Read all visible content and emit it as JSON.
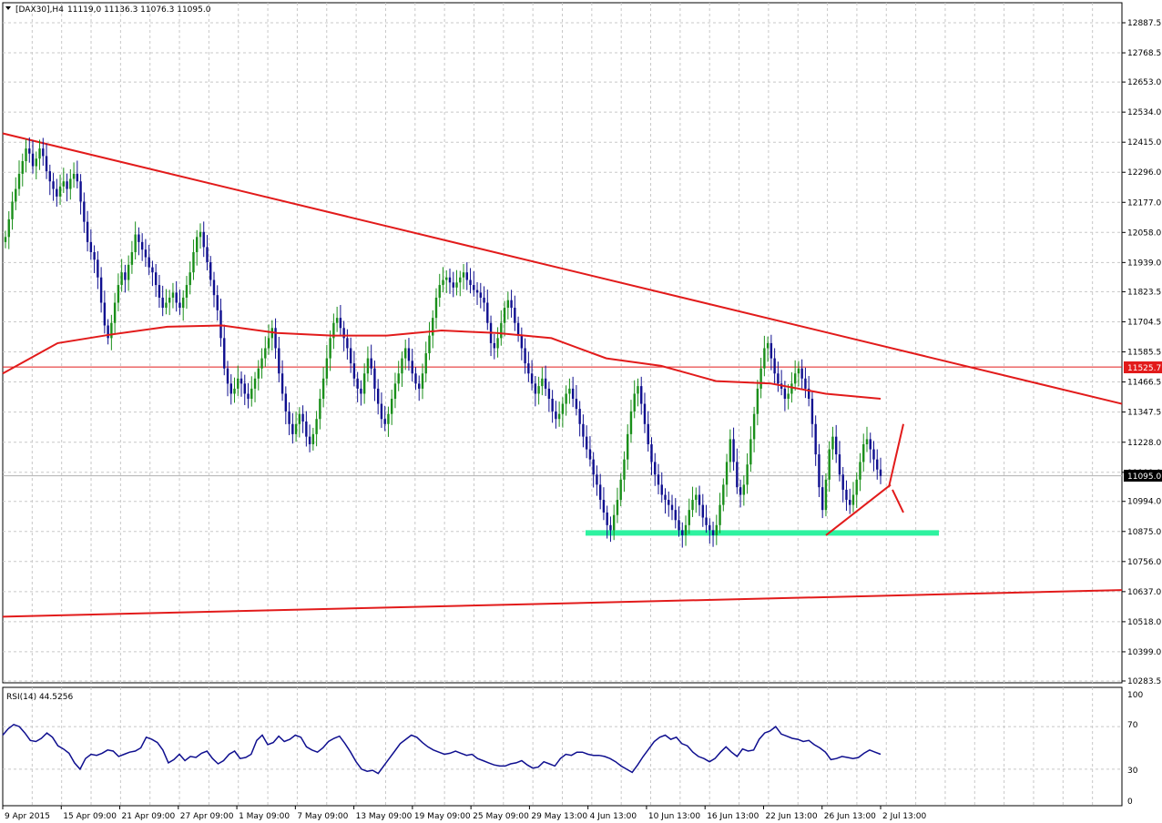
{
  "header": {
    "symbol": "[DAX30],H4",
    "ohlc": "11119,0 11136.3 11076.3 11095.0"
  },
  "rsi": {
    "label": "RSI(14) 44.5256",
    "levels": [
      "100",
      "70",
      "30",
      "0"
    ]
  },
  "chart_data": {
    "type": "candlestick",
    "price_axis": {
      "ticks": [
        12887.5,
        12768.5,
        12653.0,
        12534.0,
        12415.0,
        12296.0,
        12177.0,
        12058.0,
        11939.0,
        11823.5,
        11704.5,
        11585.5,
        11466.5,
        11347.5,
        11228.0,
        11109.0,
        10994.0,
        10875.0,
        10756.0,
        10637.0,
        10518.0,
        10399.0,
        10283.5
      ],
      "tick_labels": [
        "12887.5",
        "12768.5",
        "12653.0",
        "12534.0",
        "12415.0",
        "12296.0",
        "12177.0",
        "12058.0",
        "11939.0",
        "11823.5",
        "11704.5",
        "11585.5",
        "11466.5",
        "11347.5",
        "11228.0",
        "11109.0",
        "10994.0",
        "10875.0",
        "10756.0",
        "10637.0",
        "10518.0",
        "10399.0",
        "10283.5"
      ]
    },
    "time_axis": {
      "labels": [
        "9 Apr 2015",
        "15 Apr 09:00",
        "21 Apr 09:00",
        "27 Apr 09:00",
        "1 May 09:00",
        "7 May 09:00",
        "13 May 09:00",
        "19 May 09:00",
        "25 May 09:00",
        "29 May 13:00",
        "4 Jun 13:00",
        "10 Jun 13:00",
        "16 Jun 13:00",
        "22 Jun 13:00",
        "26 Jun 13:00",
        "2 Jul 13:00"
      ]
    },
    "closes": [
      12040,
      12110,
      12180,
      12230,
      12290,
      12340,
      12390,
      12370,
      12320,
      12350,
      12390,
      12360,
      12300,
      12260,
      12230,
      12200,
      12240,
      12260,
      12230,
      12270,
      12290,
      12260,
      12180,
      12100,
      12020,
      11980,
      11950,
      11880,
      11780,
      11690,
      11640,
      11700,
      11780,
      11850,
      11900,
      11870,
      11930,
      11980,
      12050,
      12020,
      11990,
      11960,
      11920,
      11900,
      11850,
      11800,
      11760,
      11780,
      11800,
      11820,
      11780,
      11760,
      11800,
      11850,
      11900,
      11980,
      12040,
      12060,
      12000,
      11940,
      11870,
      11810,
      11750,
      11640,
      11520,
      11460,
      11420,
      11440,
      11480,
      11460,
      11420,
      11400,
      11440,
      11480,
      11520,
      11560,
      11600,
      11640,
      11680,
      11600,
      11500,
      11420,
      11350,
      11300,
      11260,
      11300,
      11340,
      11310,
      11250,
      11220,
      11260,
      11320,
      11400,
      11480,
      11560,
      11640,
      11700,
      11720,
      11680,
      11640,
      11600,
      11540,
      11480,
      11440,
      11420,
      11500,
      11560,
      11520,
      11440,
      11380,
      11320,
      11300,
      11340,
      11400,
      11460,
      11500,
      11560,
      11600,
      11550,
      11500,
      11460,
      11440,
      11500,
      11580,
      11650,
      11720,
      11800,
      11850,
      11870,
      11880,
      11860,
      11840,
      11860,
      11880,
      11900,
      11870,
      11850,
      11830,
      11820,
      11800,
      11780,
      11700,
      11620,
      11600,
      11640,
      11700,
      11760,
      11790,
      11760,
      11700,
      11650,
      11600,
      11540,
      11500,
      11460,
      11420,
      11450,
      11480,
      11440,
      11400,
      11350,
      11320,
      11340,
      11380,
      11420,
      11440,
      11400,
      11360,
      11300,
      11250,
      11200,
      11160,
      11100,
      11060,
      11000,
      10950,
      10900,
      10880,
      10940,
      11000,
      11080,
      11160,
      11260,
      11350,
      11420,
      11450,
      11380,
      11300,
      11220,
      11150,
      11100,
      11060,
      11020,
      11000,
      10980,
      10960,
      10920,
      10880,
      10860,
      10900,
      10960,
      11000,
      11020,
      10980,
      10930,
      10900,
      10880,
      10860,
      10900,
      10980,
      11060,
      11150,
      11240,
      11150,
      11050,
      11020,
      11060,
      11140,
      11240,
      11340,
      11440,
      11520,
      11600,
      11620,
      11560,
      11500,
      11460,
      11440,
      11400,
      11420,
      11460,
      11500,
      11520,
      11480,
      11440,
      11400,
      11300,
      11180,
      11050,
      10960,
      11080,
      11200,
      11250,
      11180,
      11100,
      11040,
      11000,
      10980,
      11020,
      11080,
      11150,
      11220,
      11240,
      11200,
      11160,
      11120,
      11095
    ],
    "overlays": {
      "moving_average": [
        11500,
        11620,
        11655,
        11685,
        11690,
        11660,
        11650,
        11650,
        11670,
        11660,
        11640,
        11560,
        11530,
        11470,
        11460,
        11420,
        11400
      ],
      "horizontal_line_value": 11525.7,
      "horizontal_line_label": "11525.7",
      "current_price": 11095.0,
      "current_price_label": "11095.0",
      "support_zone": [
        10860,
        10880
      ],
      "lower_trendline_values": [
        10538,
        10643
      ],
      "upper_trendline_values": [
        12450,
        11380
      ]
    },
    "rsi_values": [
      62,
      68,
      72,
      70,
      64,
      57,
      56,
      59,
      64,
      60,
      52,
      49,
      45,
      36,
      30,
      40,
      44,
      43,
      45,
      48,
      47,
      42,
      44,
      46,
      47,
      50,
      60,
      58,
      55,
      48,
      36,
      39,
      44,
      38,
      42,
      41,
      45,
      47,
      40,
      35,
      38,
      44,
      47,
      40,
      41,
      44,
      57,
      62,
      53,
      55,
      61,
      56,
      58,
      62,
      60,
      51,
      48,
      46,
      50,
      56,
      59,
      61,
      54,
      46,
      37,
      30,
      28,
      29,
      26,
      33,
      40,
      47,
      54,
      58,
      62,
      60,
      55,
      51,
      48,
      46,
      44,
      45,
      47,
      45,
      43,
      44,
      40,
      38,
      36,
      34,
      33,
      33,
      35,
      36,
      38,
      34,
      31,
      32,
      37,
      35,
      33,
      40,
      44,
      43,
      46,
      46,
      44,
      43,
      43,
      42,
      40,
      37,
      33,
      30,
      27,
      34,
      42,
      49,
      56,
      60,
      62,
      58,
      60,
      54,
      52,
      46,
      42,
      40,
      37,
      40,
      46,
      51,
      46,
      42,
      49,
      47,
      48,
      58,
      64,
      66,
      70,
      63,
      61,
      59,
      58,
      56,
      57,
      53,
      50,
      46,
      39,
      40,
      42,
      41,
      40,
      41,
      45,
      48,
      46,
      44
    ]
  }
}
